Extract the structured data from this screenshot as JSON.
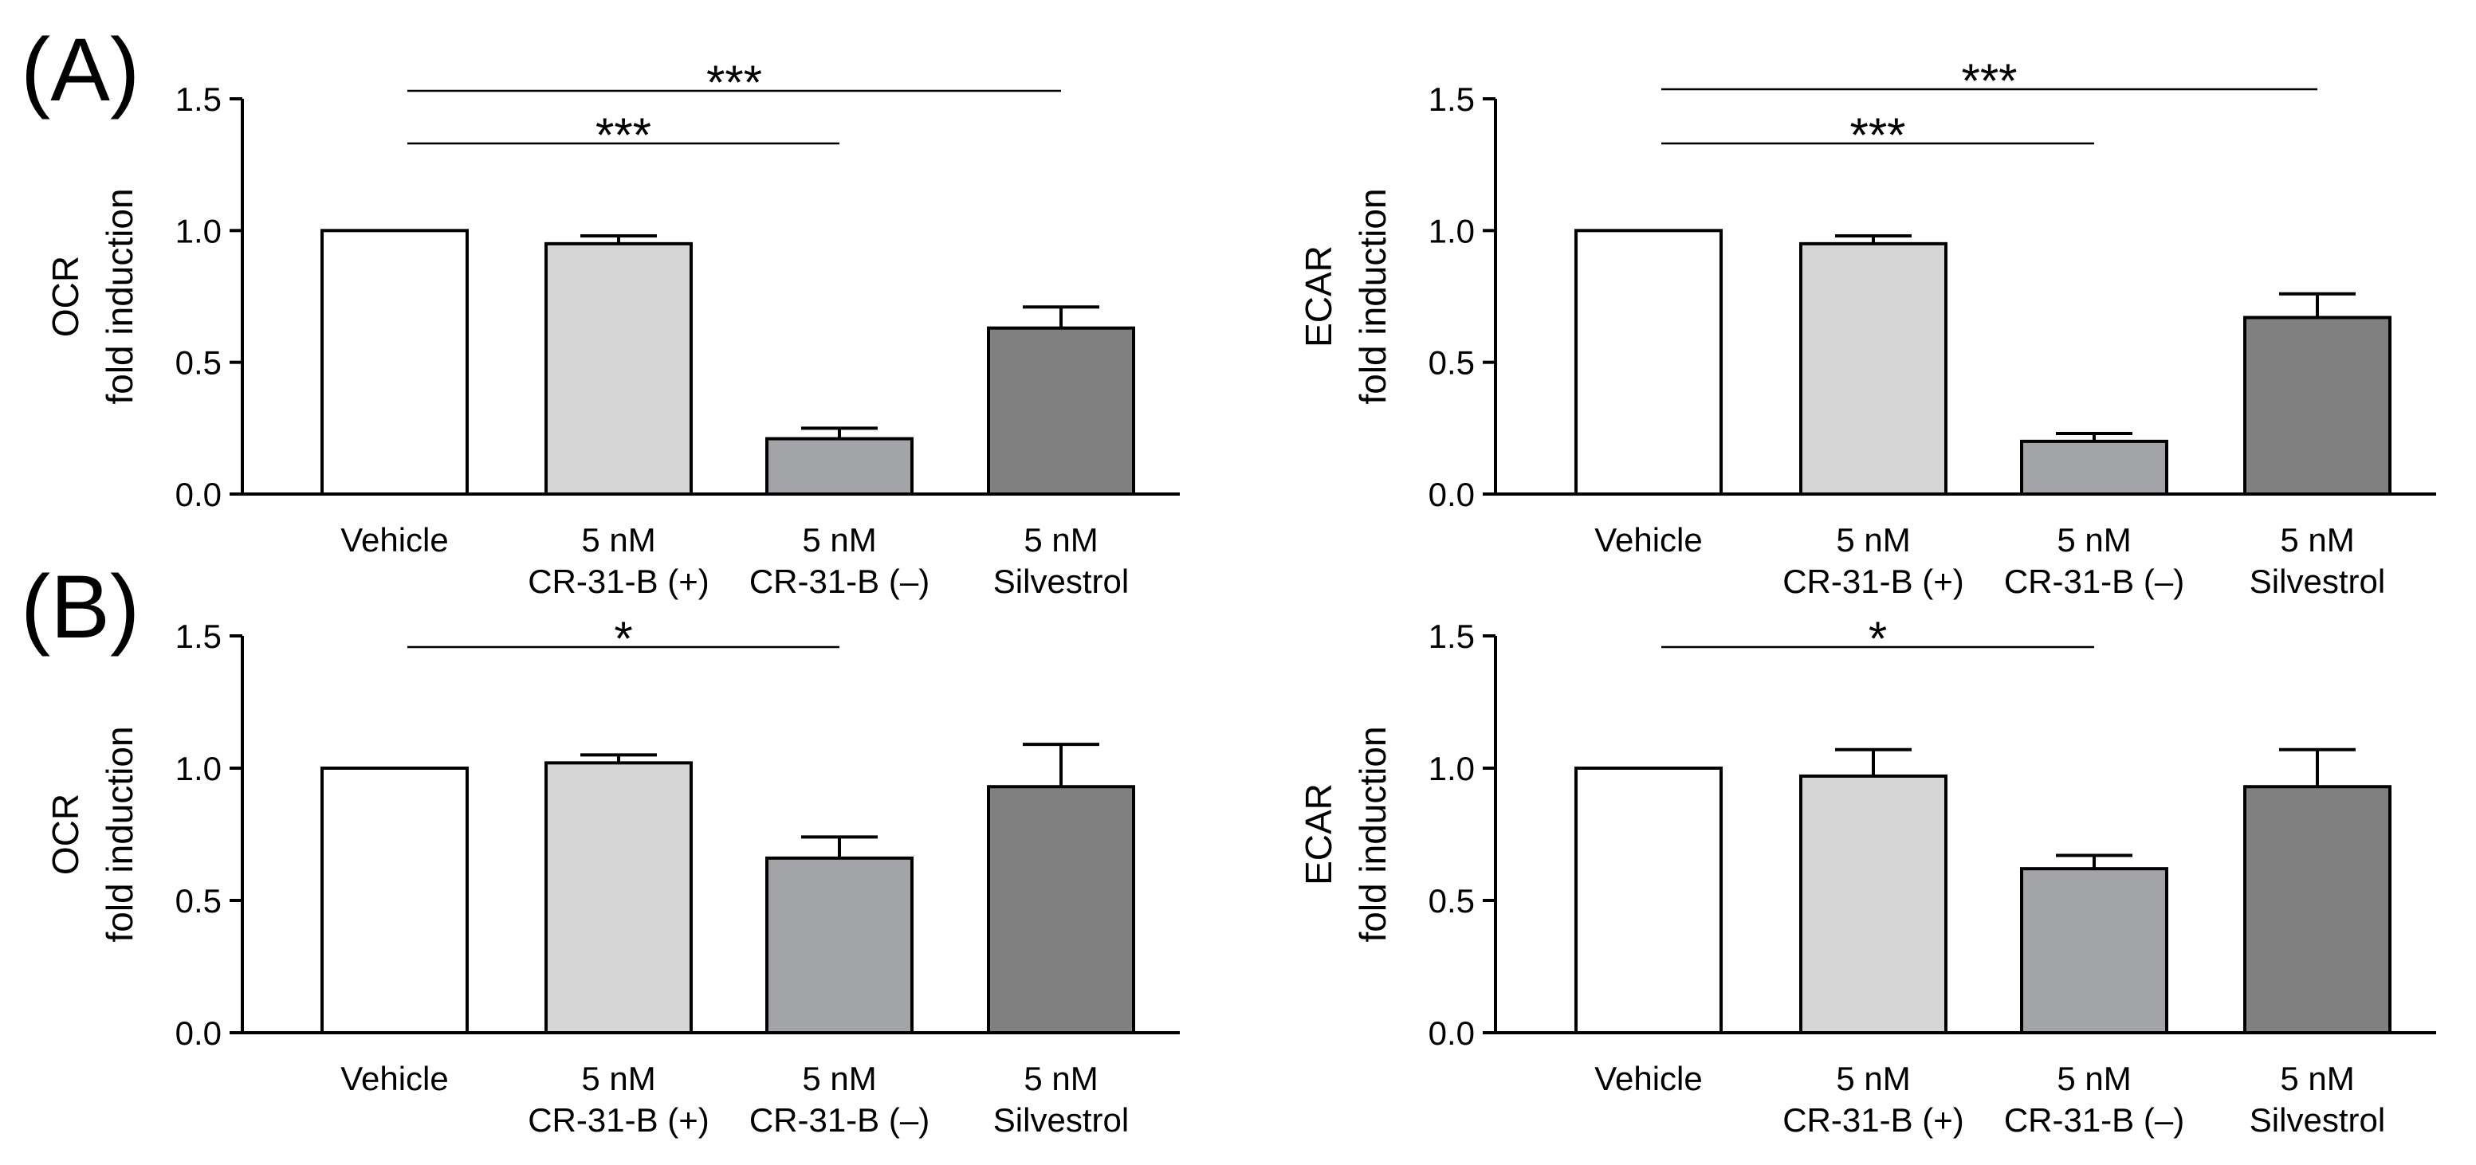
{
  "figure": {
    "panel_labels": [
      "(A)",
      "(B)"
    ]
  },
  "chart_data": [
    {
      "type": "bar",
      "ylabel": [
        "OCR",
        "fold induction"
      ],
      "categories": [
        [
          "Vehicle"
        ],
        [
          "5 nM",
          "CR-31-B (+)"
        ],
        [
          "5 nM",
          "CR-31-B (–)"
        ],
        [
          "5 nM",
          "Silvestrol"
        ]
      ],
      "values": [
        1.0,
        0.95,
        0.21,
        0.63
      ],
      "errors": [
        0,
        0.03,
        0.04,
        0.08
      ],
      "ylim": [
        0,
        1.5
      ],
      "ytick_values": [
        0,
        0.5,
        1.0,
        1.5
      ],
      "ytick_labels": [
        "0.0",
        "0.5",
        "1.0",
        "1.5"
      ],
      "colors": [
        "#ffffff",
        "#d6d6d6",
        "#a3a4a8",
        "#808080"
      ],
      "significance": [
        {
          "from": 0,
          "to": 2,
          "label": "***"
        },
        {
          "from": 0,
          "to": 3,
          "label": "***"
        }
      ]
    },
    {
      "type": "bar",
      "ylabel": [
        "ECAR",
        "fold induction"
      ],
      "categories": [
        [
          "Vehicle"
        ],
        [
          "5 nM",
          "CR-31-B (+)"
        ],
        [
          "5 nM",
          "CR-31-B (–)"
        ],
        [
          "5 nM",
          "Silvestrol"
        ]
      ],
      "values": [
        1.0,
        0.95,
        0.2,
        0.67
      ],
      "errors": [
        0,
        0.03,
        0.03,
        0.09
      ],
      "ylim": [
        0,
        1.5
      ],
      "ytick_values": [
        0,
        0.5,
        1.0,
        1.5
      ],
      "ytick_labels": [
        "0.0",
        "0.5",
        "1.0",
        "1.5"
      ],
      "colors": [
        "#ffffff",
        "#d6d6d6",
        "#a3a4a8",
        "#808080"
      ],
      "significance": [
        {
          "from": 0,
          "to": 2,
          "label": "***"
        },
        {
          "from": 0,
          "to": 3,
          "label": "***"
        }
      ]
    },
    {
      "type": "bar",
      "ylabel": [
        "OCR",
        "fold induction"
      ],
      "categories": [
        [
          "Vehicle"
        ],
        [
          "5 nM",
          "CR-31-B (+)"
        ],
        [
          "5 nM",
          "CR-31-B (–)"
        ],
        [
          "5 nM",
          "Silvestrol"
        ]
      ],
      "values": [
        1.0,
        1.02,
        0.66,
        0.93
      ],
      "errors": [
        0,
        0.03,
        0.08,
        0.16
      ],
      "ylim": [
        0,
        1.5
      ],
      "ytick_values": [
        0,
        0.5,
        1.0,
        1.5
      ],
      "ytick_labels": [
        "0.0",
        "0.5",
        "1.0",
        "1.5"
      ],
      "colors": [
        "#ffffff",
        "#d6d6d6",
        "#a3a4a8",
        "#808080"
      ],
      "significance": [
        {
          "from": 0,
          "to": 2,
          "label": "*"
        }
      ]
    },
    {
      "type": "bar",
      "ylabel": [
        "ECAR",
        "fold induction"
      ],
      "categories": [
        [
          "Vehicle"
        ],
        [
          "5 nM",
          "CR-31-B (+)"
        ],
        [
          "5 nM",
          "CR-31-B (–)"
        ],
        [
          "5 nM",
          "Silvestrol"
        ]
      ],
      "values": [
        1.0,
        0.97,
        0.62,
        0.93
      ],
      "errors": [
        0,
        0.1,
        0.05,
        0.14
      ],
      "ylim": [
        0,
        1.5
      ],
      "ytick_values": [
        0,
        0.5,
        1.0,
        1.5
      ],
      "ytick_labels": [
        "0.0",
        "0.5",
        "1.0",
        "1.5"
      ],
      "colors": [
        "#ffffff",
        "#d6d6d6",
        "#a3a4a8",
        "#808080"
      ],
      "significance": [
        {
          "from": 0,
          "to": 2,
          "label": "*"
        }
      ]
    }
  ]
}
